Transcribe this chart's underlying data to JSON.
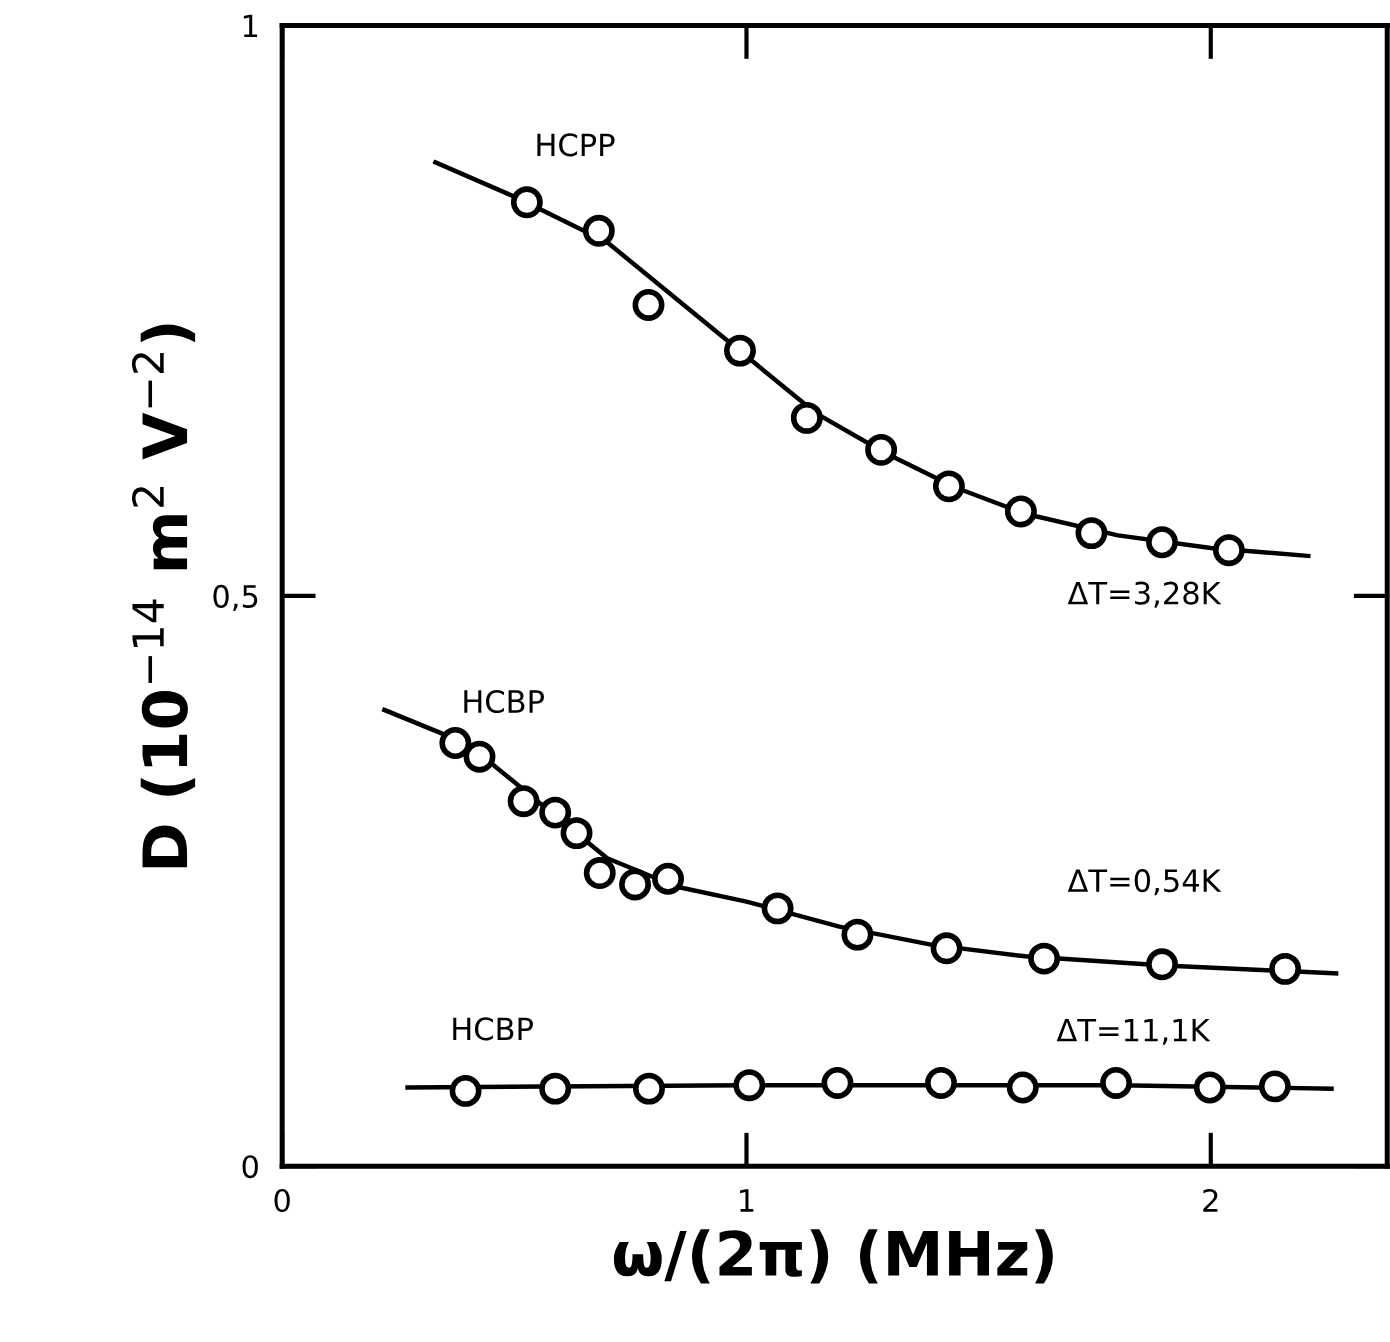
{
  "chart_data": {
    "type": "scatter",
    "xlabel": "ω/(2π) (MHz)",
    "ylabel": "D (10$^{−14}$ m$^{2}$ V$^{−2}$)",
    "xlim": [
      0,
      2.38
    ],
    "ylim": [
      0,
      1
    ],
    "xticks": [
      0,
      1,
      2
    ],
    "yticks": [
      0,
      {
        "value": 0.5,
        "label": "0,5"
      },
      1
    ],
    "grid": false,
    "legend": false,
    "series": [
      {
        "marker": "circle",
        "color": "#000000",
        "x": [
          0.527,
          0.682,
          0.789,
          0.986,
          1.13,
          1.29,
          1.436,
          1.591,
          1.743,
          1.895,
          2.039
        ],
        "values": [
          0.845,
          0.82,
          0.755,
          0.715,
          0.656,
          0.628,
          0.596,
          0.574,
          0.555,
          0.547,
          0.54
        ]
      },
      {
        "type": "line",
        "line_style": "solid",
        "color": "#000000",
        "x": [
          0.33,
          0.5,
          0.7,
          0.85,
          1.0,
          1.15,
          1.3,
          1.45,
          1.6,
          1.8,
          2.0,
          2.21
        ],
        "values": [
          0.88,
          0.85,
          0.81,
          0.76,
          0.71,
          0.66,
          0.625,
          0.595,
          0.572,
          0.553,
          0.542,
          0.535
        ]
      },
      {
        "marker": "circle",
        "color": "#000000",
        "x": [
          0.373,
          0.425,
          0.52,
          0.588,
          0.634,
          0.684,
          0.76,
          0.831,
          1.067,
          1.239,
          1.431,
          1.641,
          1.895,
          2.16
        ],
        "values": [
          0.371,
          0.359,
          0.32,
          0.31,
          0.292,
          0.257,
          0.247,
          0.252,
          0.226,
          0.203,
          0.191,
          0.182,
          0.177,
          0.173
        ]
      },
      {
        "type": "line",
        "line_style": "solid",
        "color": "#000000",
        "x": [
          0.22,
          0.4,
          0.55,
          0.7,
          0.85,
          1.0,
          1.2,
          1.4,
          1.6,
          1.9,
          2.27
        ],
        "values": [
          0.4,
          0.37,
          0.32,
          0.27,
          0.245,
          0.232,
          0.21,
          0.194,
          0.184,
          0.176,
          0.169
        ]
      },
      {
        "marker": "circle",
        "color": "#000000",
        "x": [
          0.395,
          0.588,
          0.79,
          1.006,
          1.196,
          1.419,
          1.595,
          1.796,
          1.998,
          2.138
        ],
        "values": [
          0.066,
          0.068,
          0.068,
          0.071,
          0.073,
          0.073,
          0.069,
          0.073,
          0.069,
          0.07
        ]
      },
      {
        "type": "line",
        "line_style": "solid",
        "color": "#000000",
        "x": [
          0.27,
          1.0,
          1.8,
          2.26
        ],
        "values": [
          0.069,
          0.071,
          0.071,
          0.068
        ]
      }
    ],
    "annotations": [
      "HCPP",
      "ΔT=3,28K",
      "HCBP",
      "ΔT=0,54K",
      "HCBP",
      "ΔT=11,1K"
    ]
  }
}
